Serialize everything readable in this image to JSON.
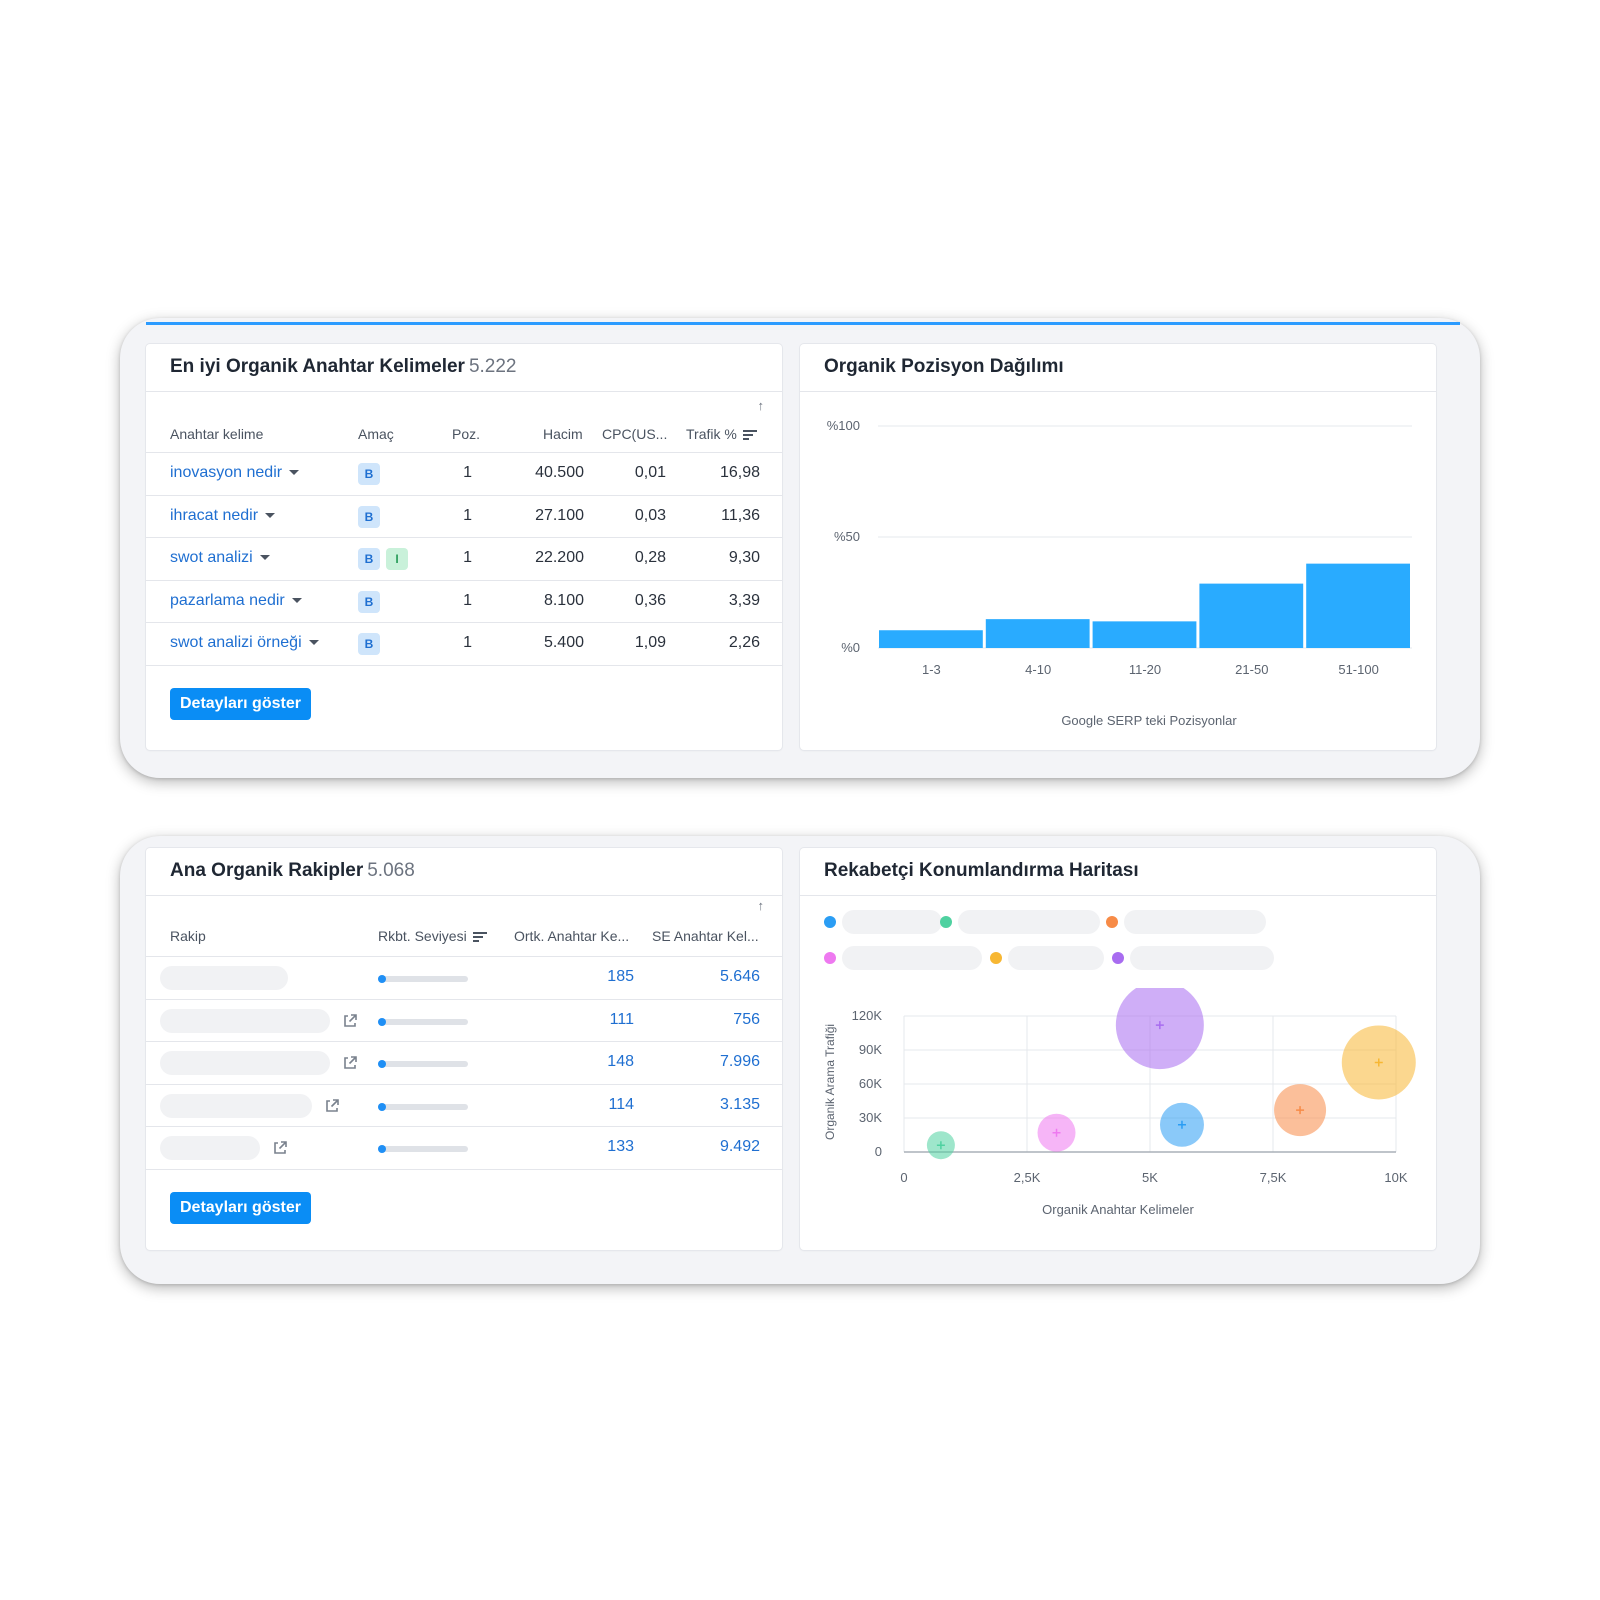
{
  "keywords_card": {
    "title": "En iyi Organik Anahtar Kelimeler",
    "count": "5.222",
    "sort_arrow": "↑",
    "columns": [
      "Anahtar kelime",
      "Amaç",
      "Poz.",
      "Hacim",
      "CPC(US...",
      "Trafik %"
    ],
    "rows": [
      {
        "keyword": "inovasyon nedir",
        "intents": [
          "B"
        ],
        "pos": "1",
        "volume": "40.500",
        "cpc": "0,01",
        "traffic": "16,98"
      },
      {
        "keyword": "ihracat nedir",
        "intents": [
          "B"
        ],
        "pos": "1",
        "volume": "27.100",
        "cpc": "0,03",
        "traffic": "11,36"
      },
      {
        "keyword": "swot analizi",
        "intents": [
          "B",
          "I"
        ],
        "pos": "1",
        "volume": "22.200",
        "cpc": "0,28",
        "traffic": "9,30"
      },
      {
        "keyword": "pazarlama nedir",
        "intents": [
          "B"
        ],
        "pos": "1",
        "volume": "8.100",
        "cpc": "0,36",
        "traffic": "3,39"
      },
      {
        "keyword": "swot analizi örneği",
        "intents": [
          "B"
        ],
        "pos": "1",
        "volume": "5.400",
        "cpc": "1,09",
        "traffic": "2,26"
      }
    ],
    "button": "Detayları göster"
  },
  "position_card": {
    "title": "Organik Pozisyon Dağılımı"
  },
  "competitors_card": {
    "title": "Ana Organik Rakipler",
    "count": "5.068",
    "sort_arrow": "↑",
    "columns": [
      "Rakip",
      "Rkbt. Seviyesi",
      "Ortk. Anahtar Ke...",
      "SE Anahtar Kel..."
    ],
    "rows": [
      {
        "common": "185",
        "se": "5.646",
        "level": 0.08
      },
      {
        "common": "111",
        "se": "756",
        "level": 0.08
      },
      {
        "common": "148",
        "se": "7.996",
        "level": 0.08
      },
      {
        "common": "114",
        "se": "3.135",
        "level": 0.08
      },
      {
        "common": "133",
        "se": "9.492",
        "level": 0.08
      }
    ],
    "button": "Detayları göster"
  },
  "map_card": {
    "title": "Rekabetçi Konumlandırma Haritası",
    "legend_colors": [
      "#2a9df4",
      "#4fd1a0",
      "#f78b47",
      "#ee79f0",
      "#f7b733",
      "#a86cf0"
    ]
  },
  "colors": {
    "accent": "#0a8df5",
    "bar": "#29abff",
    "link": "#1f6fd1"
  },
  "chart_data": [
    {
      "type": "bar",
      "categories": [
        "1-3",
        "4-10",
        "11-20",
        "21-50",
        "51-100"
      ],
      "values": [
        8,
        13,
        12,
        29,
        38
      ],
      "yticks": [
        "%0",
        "%50",
        "%100"
      ],
      "ylim": [
        0,
        100
      ],
      "xlabel": "Google SERP teki Pozisyonlar",
      "ylabel": "",
      "grid": true
    },
    {
      "type": "scatter",
      "xlabel": "Organik Anahtar Kelimeler",
      "ylabel": "Organik Arama Trafiği",
      "xticks": [
        "0",
        "2,5K",
        "5K",
        "7,5K",
        "10K"
      ],
      "yticks": [
        "0",
        "30K",
        "60K",
        "90K",
        "120K"
      ],
      "xlim": [
        0,
        10000
      ],
      "ylim": [
        0,
        120000
      ],
      "points": [
        {
          "x": 750,
          "y": 6000,
          "size": 14,
          "color": "#4fd1a0"
        },
        {
          "x": 3100,
          "y": 17000,
          "size": 19,
          "color": "#ee79f0"
        },
        {
          "x": 5200,
          "y": 112000,
          "size": 44,
          "color": "#a86cf0"
        },
        {
          "x": 5650,
          "y": 24000,
          "size": 22,
          "color": "#2a9df4"
        },
        {
          "x": 8050,
          "y": 37000,
          "size": 26,
          "color": "#f78b47"
        },
        {
          "x": 9650,
          "y": 79000,
          "size": 37,
          "color": "#f7b733"
        }
      ],
      "grid": true
    }
  ]
}
